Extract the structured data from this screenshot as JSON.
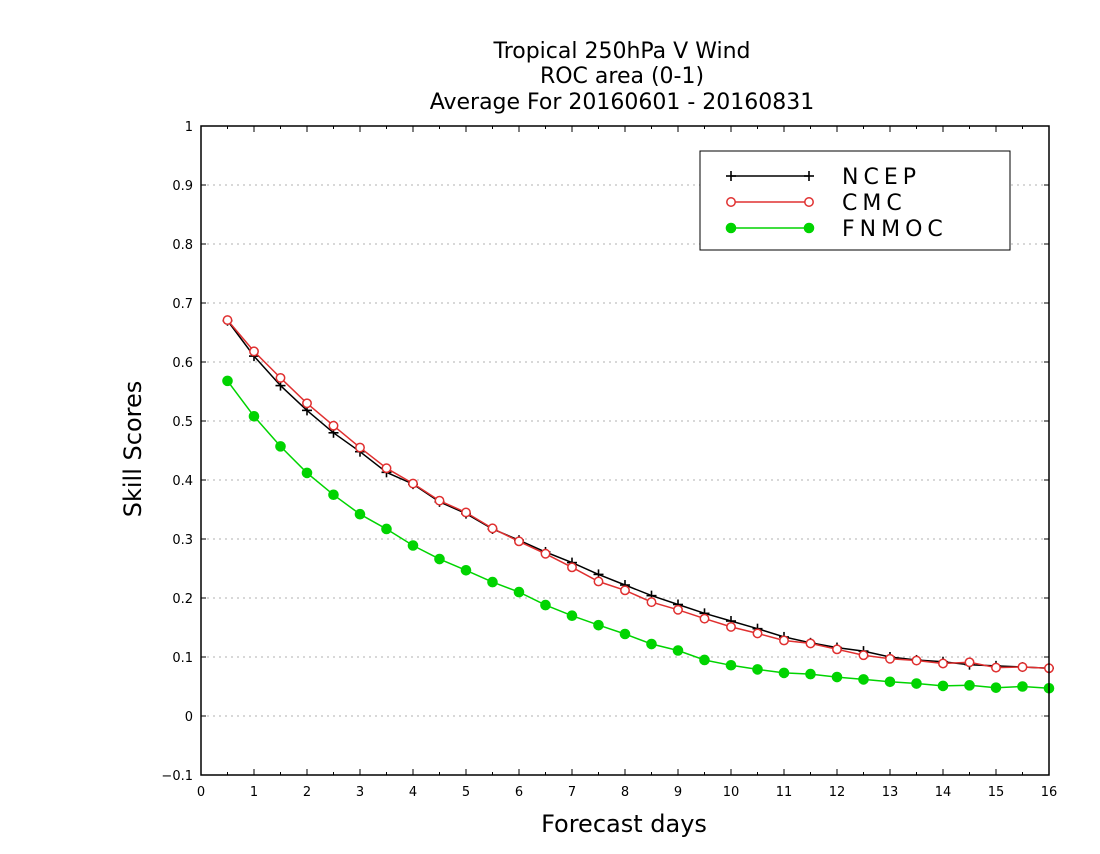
{
  "chart_data": {
    "type": "line",
    "title_lines": [
      "Tropical 250hPa V Wind",
      "ROC area (0-1)",
      "Average For 20160601 - 20160831"
    ],
    "xlabel": "Forecast days",
    "ylabel": "Skill Scores",
    "xlim": [
      0,
      16
    ],
    "ylim": [
      -0.1,
      1
    ],
    "xticks": [
      0,
      1,
      2,
      3,
      4,
      5,
      6,
      7,
      8,
      9,
      10,
      11,
      12,
      13,
      14,
      15,
      16
    ],
    "yticks": [
      -0.1,
      0,
      0.1,
      0.2,
      0.3,
      0.4,
      0.5,
      0.6,
      0.7,
      0.8,
      0.9,
      1
    ],
    "ytick_labels": [
      "−0.1",
      "0",
      "0.1",
      "0.2",
      "0.3",
      "0.4",
      "0.5",
      "0.6",
      "0.7",
      "0.8",
      "0.9",
      "1"
    ],
    "grid": true,
    "legend_position": "top-right",
    "x": [
      0.5,
      1,
      1.5,
      2,
      2.5,
      3,
      3.5,
      4,
      4.5,
      5,
      5.5,
      6,
      6.5,
      7,
      7.5,
      8,
      8.5,
      9,
      9.5,
      10,
      10.5,
      11,
      11.5,
      12,
      12.5,
      13,
      13.5,
      14,
      14.5,
      15,
      15.5,
      16
    ],
    "series": [
      {
        "name": "NCEP",
        "color": "#000000",
        "marker": "plus",
        "values": [
          0.67,
          0.61,
          0.56,
          0.518,
          0.48,
          0.448,
          0.413,
          0.393,
          0.363,
          0.343,
          0.317,
          0.298,
          0.278,
          0.26,
          0.24,
          0.222,
          0.204,
          0.189,
          0.174,
          0.161,
          0.148,
          0.134,
          0.124,
          0.116,
          0.11,
          0.1,
          0.095,
          0.092,
          0.087,
          0.085,
          0.083,
          0.081
        ]
      },
      {
        "name": "CMC",
        "color": "#e03030",
        "marker": "open-circle",
        "values": [
          0.671,
          0.618,
          0.573,
          0.53,
          0.492,
          0.455,
          0.42,
          0.394,
          0.365,
          0.345,
          0.318,
          0.296,
          0.275,
          0.252,
          0.228,
          0.213,
          0.193,
          0.18,
          0.165,
          0.151,
          0.14,
          0.128,
          0.123,
          0.113,
          0.103,
          0.097,
          0.094,
          0.089,
          0.091,
          0.082,
          0.083,
          0.081
        ]
      },
      {
        "name": "FNMOC",
        "color": "#00d400",
        "marker": "filled-circle",
        "values": [
          0.568,
          0.508,
          0.457,
          0.412,
          0.375,
          0.342,
          0.317,
          0.289,
          0.266,
          0.247,
          0.227,
          0.21,
          0.188,
          0.17,
          0.154,
          0.139,
          0.122,
          0.111,
          0.095,
          0.086,
          0.079,
          0.073,
          0.071,
          0.066,
          0.062,
          0.058,
          0.055,
          0.051,
          0.052,
          0.048,
          0.05,
          0.047
        ]
      }
    ]
  }
}
